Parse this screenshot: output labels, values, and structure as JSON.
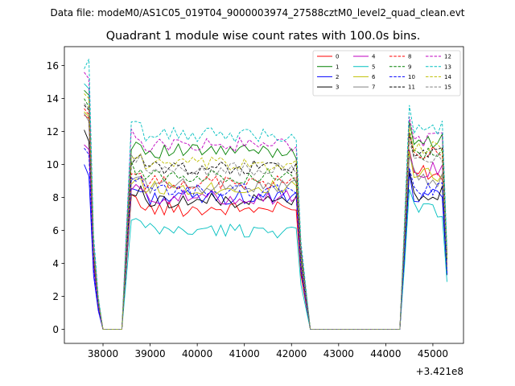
{
  "chart_data": {
    "type": "line",
    "suptitle": "Data file: modeM0/AS1C05_019T04_9000003974_27588cztM0_level2_quad_clean.evt",
    "title": "Quadrant 1 module wise count rates with 100.0s bins.",
    "xlabel": "",
    "ylabel": "",
    "x_offset_label": "+3.421e8",
    "xlim": [
      37180,
      45650
    ],
    "ylim": [
      -0.85,
      17.15
    ],
    "xticks": [
      38000,
      39000,
      40000,
      41000,
      42000,
      43000,
      44000,
      45000
    ],
    "xtick_labels": [
      "38000",
      "39000",
      "40000",
      "41000",
      "42000",
      "43000",
      "44000",
      "45000"
    ],
    "yticks": [
      0,
      2,
      4,
      6,
      8,
      10,
      12,
      14,
      16
    ],
    "ytick_labels": [
      "0",
      "2",
      "4",
      "6",
      "8",
      "10",
      "12",
      "14",
      "16"
    ],
    "legend_position": "top-right",
    "x_segments": [
      {
        "start": 37600,
        "step": 100,
        "count": 9
      },
      {
        "start": 38600,
        "step": 100,
        "count": 37
      },
      {
        "start": 42400,
        "step": 100,
        "count": 20
      },
      {
        "start": 44400,
        "step": 100,
        "count": 10
      }
    ],
    "series": [
      {
        "name": "0",
        "color": "#ff0000",
        "dash": "solid",
        "head": [
          13.0,
          12.8
        ],
        "plateau1": 7.3,
        "plateau2": 9.6
      },
      {
        "name": "1",
        "color": "#008000",
        "dash": "solid",
        "head": [
          14.5,
          14.2
        ],
        "plateau1": 10.8,
        "plateau2": 11.3
      },
      {
        "name": "2",
        "color": "#0000ff",
        "dash": "solid",
        "head": [
          10.0,
          9.3
        ],
        "plateau1": 8.0,
        "plateau2": 8.2
      },
      {
        "name": "3",
        "color": "#000000",
        "dash": "solid",
        "head": [
          12.1,
          11.4
        ],
        "plateau1": 7.8,
        "plateau2": 8.3
      },
      {
        "name": "4",
        "color": "#bf00bf",
        "dash": "solid",
        "head": [
          11.2,
          10.9
        ],
        "plateau1": 8.0,
        "plateau2": 9.6
      },
      {
        "name": "5",
        "color": "#00bfbf",
        "dash": "solid",
        "head": [
          14.9,
          14.6
        ],
        "plateau1": 6.0,
        "plateau2": 7.2
      },
      {
        "name": "6",
        "color": "#bfbf00",
        "dash": "solid",
        "head": [
          13.2,
          12.9
        ],
        "plateau1": 8.6,
        "plateau2": 9.5
      },
      {
        "name": "7",
        "color": "#808080",
        "dash": "solid",
        "head": [
          13.1,
          12.6
        ],
        "plateau1": 8.7,
        "plateau2": 9.2
      },
      {
        "name": "8",
        "color": "#ff0000",
        "dash": "dashed",
        "head": [
          13.4,
          13.0
        ],
        "plateau1": 8.9,
        "plateau2": 10.6
      },
      {
        "name": "9",
        "color": "#008000",
        "dash": "dashed",
        "head": [
          14.0,
          13.5
        ],
        "plateau1": 9.3,
        "plateau2": 10.6
      },
      {
        "name": "10",
        "color": "#0000ff",
        "dash": "dashed",
        "head": [
          11.0,
          10.6
        ],
        "plateau1": 8.4,
        "plateau2": 8.5
      },
      {
        "name": "11",
        "color": "#000000",
        "dash": "dashed",
        "head": [
          13.6,
          13.3
        ],
        "plateau1": 9.8,
        "plateau2": 10.6
      },
      {
        "name": "12",
        "color": "#bf00bf",
        "dash": "dashed",
        "head": [
          15.6,
          15.2
        ],
        "plateau1": 11.2,
        "plateau2": 11.6
      },
      {
        "name": "13",
        "color": "#00bfbf",
        "dash": "dashed",
        "head": [
          15.8,
          16.4
        ],
        "plateau1": 11.8,
        "plateau2": 12.3
      },
      {
        "name": "14",
        "color": "#bfbf00",
        "dash": "dashed",
        "head": [
          14.3,
          14.0
        ],
        "plateau1": 10.0,
        "plateau2": 10.9
      },
      {
        "name": "15",
        "color": "#808080",
        "dash": "dashed",
        "head": [
          13.7,
          13.4
        ],
        "plateau1": 9.7,
        "plateau2": 10.2
      }
    ]
  }
}
